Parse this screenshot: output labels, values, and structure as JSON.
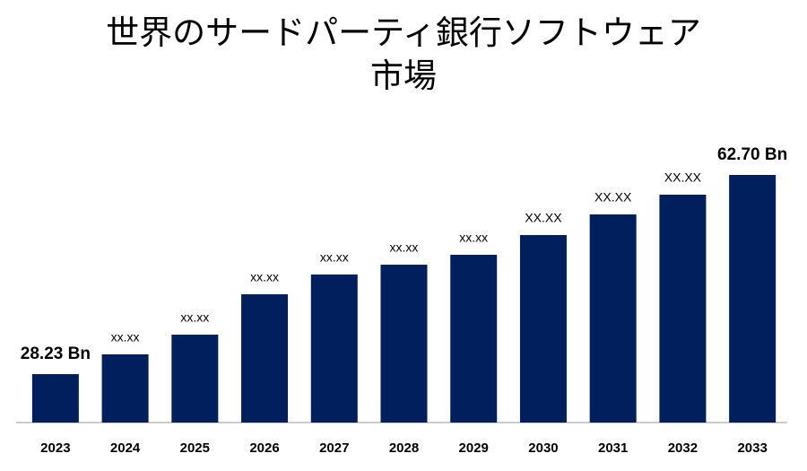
{
  "chart_data": {
    "type": "bar",
    "title": "世界のサードパーティ銀行ソフトウェア市場",
    "categories": [
      "2023",
      "2024",
      "2025",
      "2026",
      "2027",
      "2028",
      "2029",
      "2030",
      "2031",
      "2032",
      "2033"
    ],
    "values": [
      28.23,
      31.65,
      35.06,
      42.05,
      45.47,
      47.17,
      48.88,
      52.3,
      55.87,
      59.29,
      62.7
    ],
    "value_labels": [
      "28.23 Bn",
      "xx.xx",
      "xx.xx",
      "xx.xx",
      "xx.xx",
      "xx.xx",
      "xx.xx",
      "XX.XX",
      "XX.XX",
      "XX.XX",
      "62.70 Bn"
    ],
    "color": "#001f5c",
    "ylim": [
      19.85,
      70
    ]
  }
}
